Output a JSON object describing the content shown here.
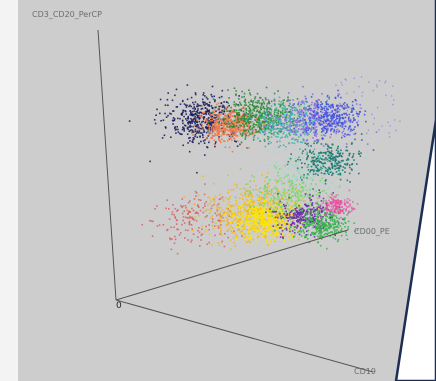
{
  "chart_data": {
    "type": "scatter",
    "dimensions": 3,
    "axes": {
      "vertical": "CD3_CD20_PerCP",
      "depth": "CD00_PE",
      "horizontal": "CD19",
      "origin": "0"
    },
    "grid": false,
    "legend": "none",
    "clusters": [
      {
        "color": "#1d1f5e",
        "pos": [
          0.29,
          0.62,
          0.55
        ],
        "spread": 0.05,
        "density": "high"
      },
      {
        "color": "#f07a4a",
        "pos": [
          0.38,
          0.6,
          0.55
        ],
        "spread": 0.035,
        "density": "high"
      },
      {
        "color": "#2f8a35",
        "pos": [
          0.48,
          0.63,
          0.58
        ],
        "spread": 0.045,
        "density": "high"
      },
      {
        "color": "#3fb7a8",
        "pos": [
          0.56,
          0.6,
          0.6
        ],
        "spread": 0.05,
        "density": "medium"
      },
      {
        "color": "#8a6fe0",
        "pos": [
          0.66,
          0.61,
          0.62
        ],
        "spread": 0.05,
        "density": "medium"
      },
      {
        "color": "#4455dd",
        "pos": [
          0.72,
          0.62,
          0.63
        ],
        "spread": 0.04,
        "density": "medium"
      },
      {
        "color": "#18776f",
        "pos": [
          0.7,
          0.46,
          0.7
        ],
        "spread": 0.04,
        "density": "medium"
      },
      {
        "color": "#d94b4b",
        "pos": [
          0.28,
          0.3,
          0.4
        ],
        "spread": 0.06,
        "density": "low"
      },
      {
        "color": "#f2b81d",
        "pos": [
          0.46,
          0.3,
          0.5
        ],
        "spread": 0.06,
        "density": "high"
      },
      {
        "color": "#ffe400",
        "pos": [
          0.51,
          0.28,
          0.52
        ],
        "spread": 0.04,
        "density": "high"
      },
      {
        "color": "#7dd36b",
        "pos": [
          0.58,
          0.35,
          0.56
        ],
        "spread": 0.05,
        "density": "medium"
      },
      {
        "color": "#6a2fa8",
        "pos": [
          0.64,
          0.28,
          0.58
        ],
        "spread": 0.035,
        "density": "medium"
      },
      {
        "color": "#36b84a",
        "pos": [
          0.69,
          0.25,
          0.6
        ],
        "spread": 0.035,
        "density": "medium"
      },
      {
        "color": "#8fe0c8",
        "pos": [
          0.64,
          0.44,
          0.62
        ],
        "spread": 0.05,
        "density": "low"
      },
      {
        "color": "#e94aa0",
        "pos": [
          0.74,
          0.31,
          0.64
        ],
        "spread": 0.02,
        "density": "low"
      }
    ]
  },
  "colors": {
    "plot_background": "#cdcdcd",
    "page_background": "#f3f3f3",
    "card_border": "#1d2e54"
  }
}
